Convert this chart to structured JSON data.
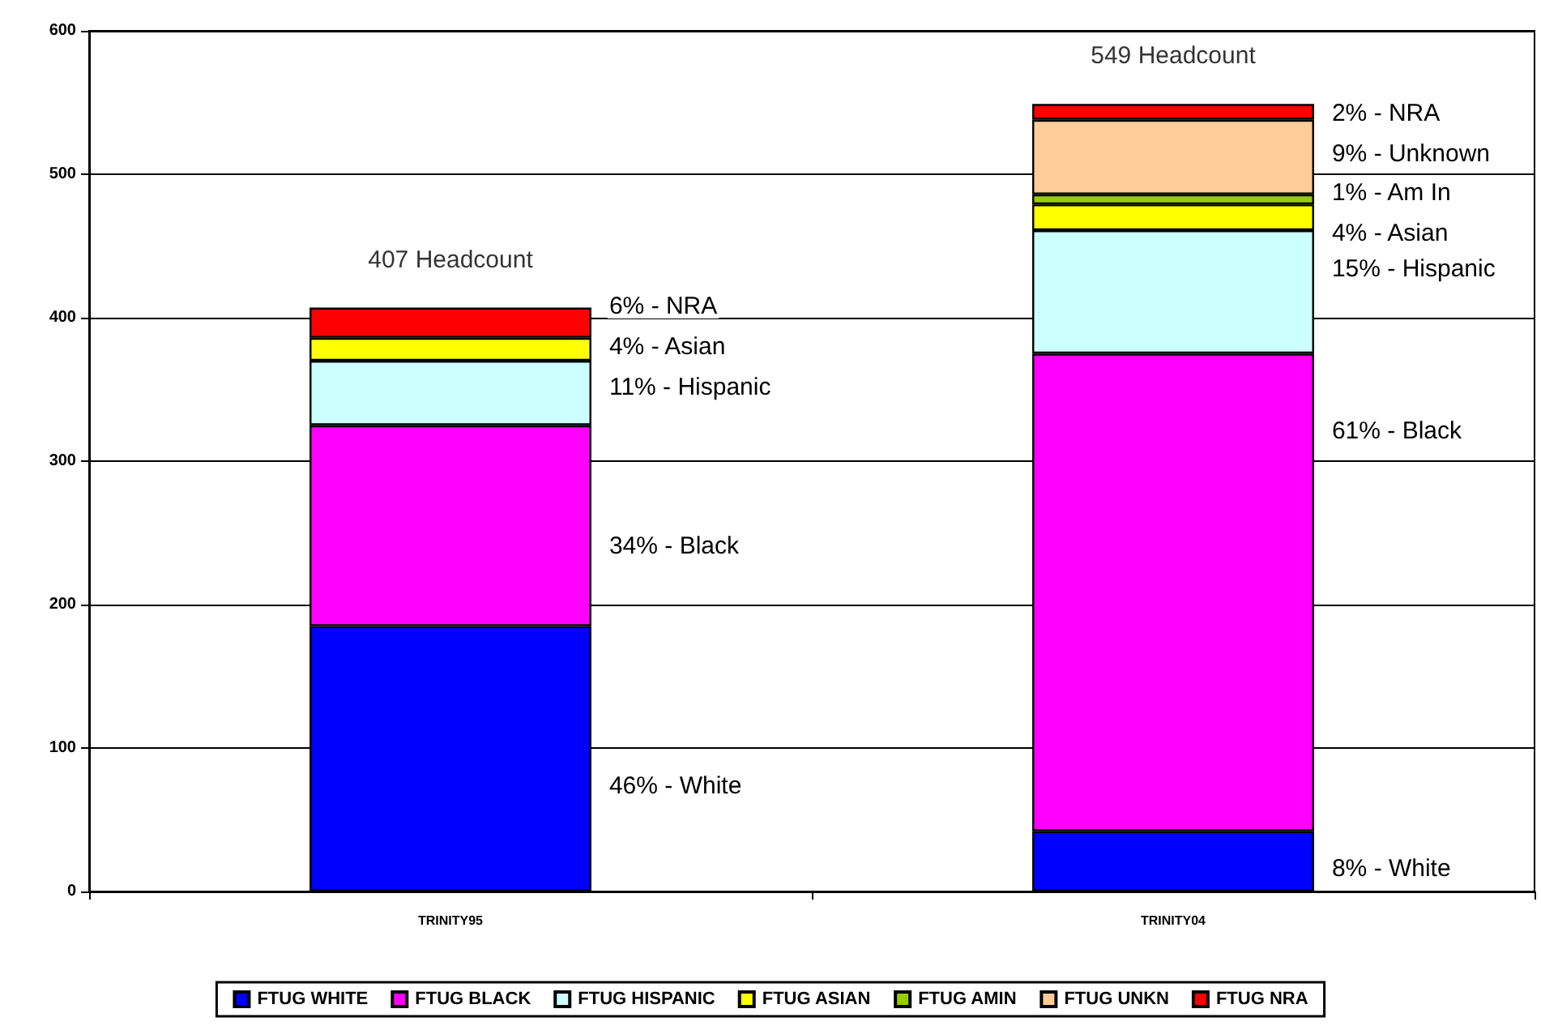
{
  "chart_data": {
    "type": "bar",
    "stacked": true,
    "categories": [
      "TRINITY95",
      "TRINITY04"
    ],
    "series": [
      {
        "name": "FTUG WHITE",
        "color": "#0000ff",
        "values": [
          185,
          42
        ]
      },
      {
        "name": "FTUG BLACK",
        "color": "#ff00ff",
        "values": [
          140,
          333
        ]
      },
      {
        "name": "FTUG HISPANIC",
        "color": "#ccffff",
        "values": [
          45,
          86
        ]
      },
      {
        "name": "FTUG ASIAN",
        "color": "#ffff00",
        "values": [
          16,
          18
        ]
      },
      {
        "name": "FTUG AMIN",
        "color": "#99cc00",
        "values": [
          null,
          7
        ]
      },
      {
        "name": "FTUG UNKN",
        "color": "#ffcc99",
        "values": [
          null,
          52
        ]
      },
      {
        "name": "FTUG NRA",
        "color": "#ff0000",
        "values": [
          21,
          11
        ]
      }
    ],
    "annotations": [
      "6% - NRA",
      "4% - Asian",
      "11% - Hispanic",
      "34% - Black",
      "46% - White",
      "2% - NRA",
      "9% - Unknown",
      "1% - Am In",
      "4% - Asian",
      "15% - Hispanic",
      "61% - Black",
      "8% - White"
    ],
    "totals": [
      "407 Headcount",
      "549 Headcount"
    ],
    "ylim": [
      0,
      600
    ],
    "yticks": [
      0,
      100,
      200,
      300,
      400,
      500,
      600
    ],
    "grid": "y",
    "legend": "bottom"
  }
}
